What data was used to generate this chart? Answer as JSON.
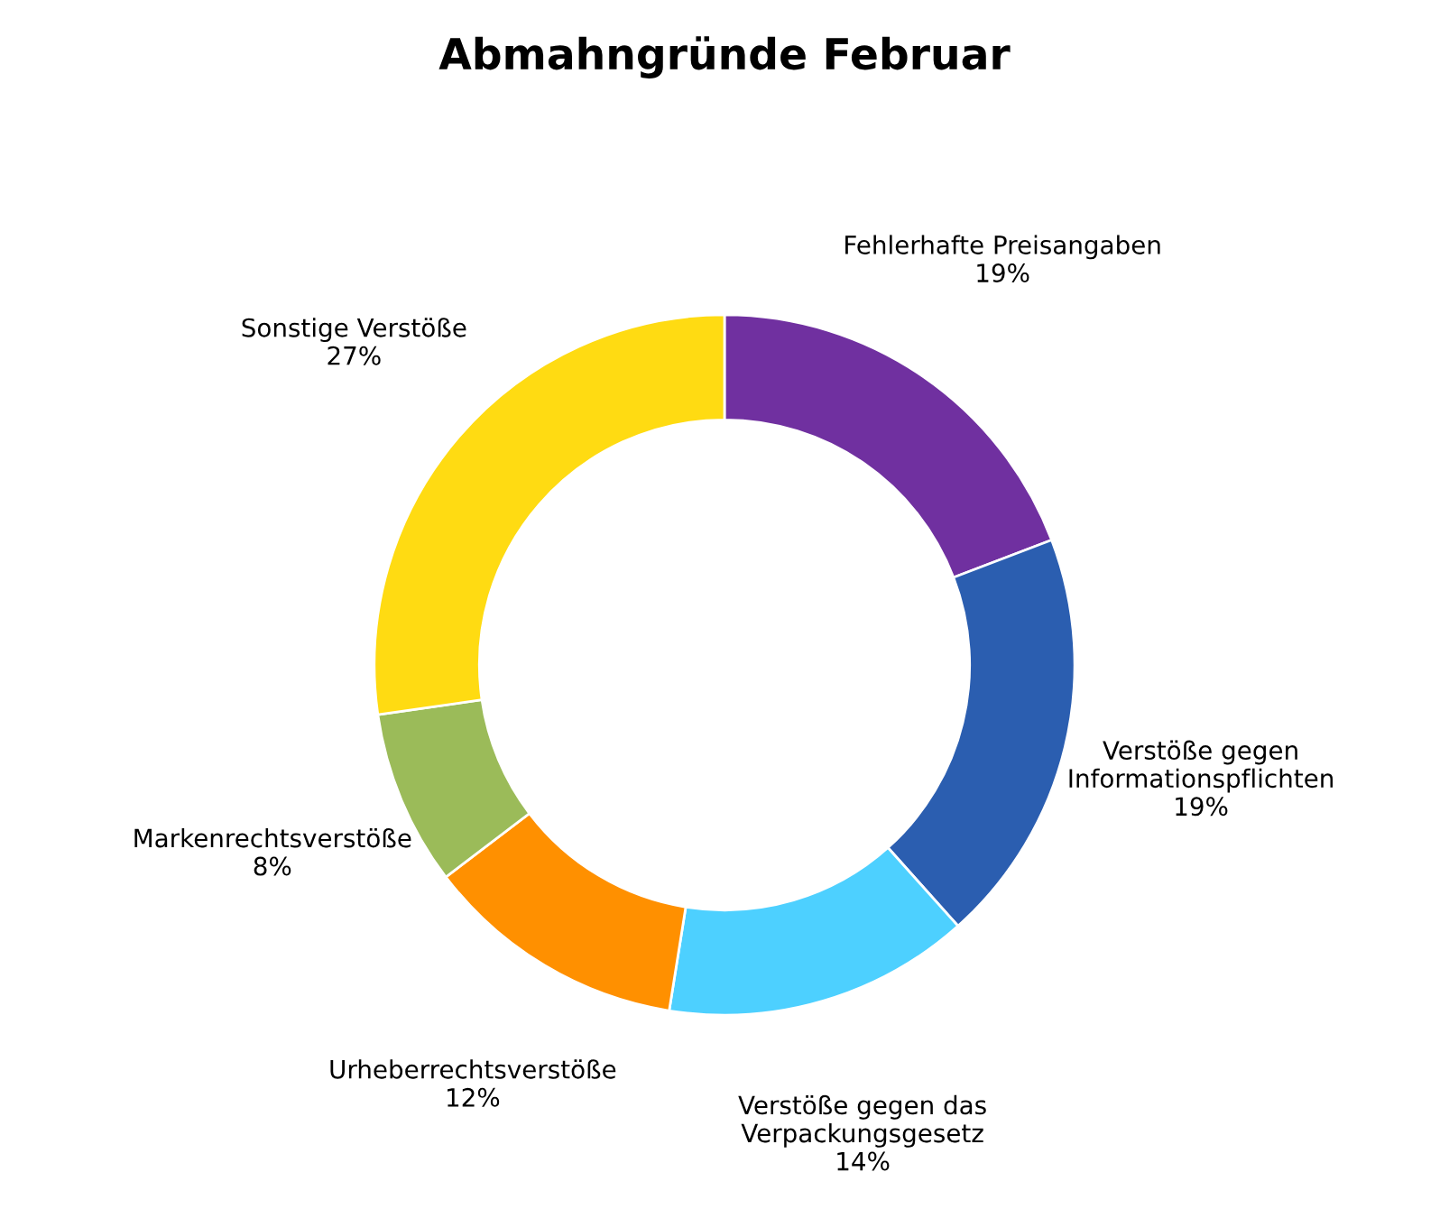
{
  "chart_data": {
    "type": "donut",
    "title": "Abmahngründe Februar",
    "categories": [
      "Fehlerhafte Preisangaben",
      "Verstöße gegen Informationspflichten",
      "Verstöße gegen das Verpackungsgesetz",
      "Urheberrechtsverstöße",
      "Markenrechtsverstöße",
      "Sonstige Verstöße"
    ],
    "values": [
      19,
      19,
      14,
      12,
      8,
      27
    ],
    "value_labels": [
      "19%",
      "19%",
      "14%",
      "12%",
      "8%",
      "27%"
    ],
    "colors": [
      "#7030a0",
      "#2b5eb0",
      "#4dd0ff",
      "#ff9000",
      "#9bbb59",
      "#ffdb12"
    ],
    "legend": false
  }
}
